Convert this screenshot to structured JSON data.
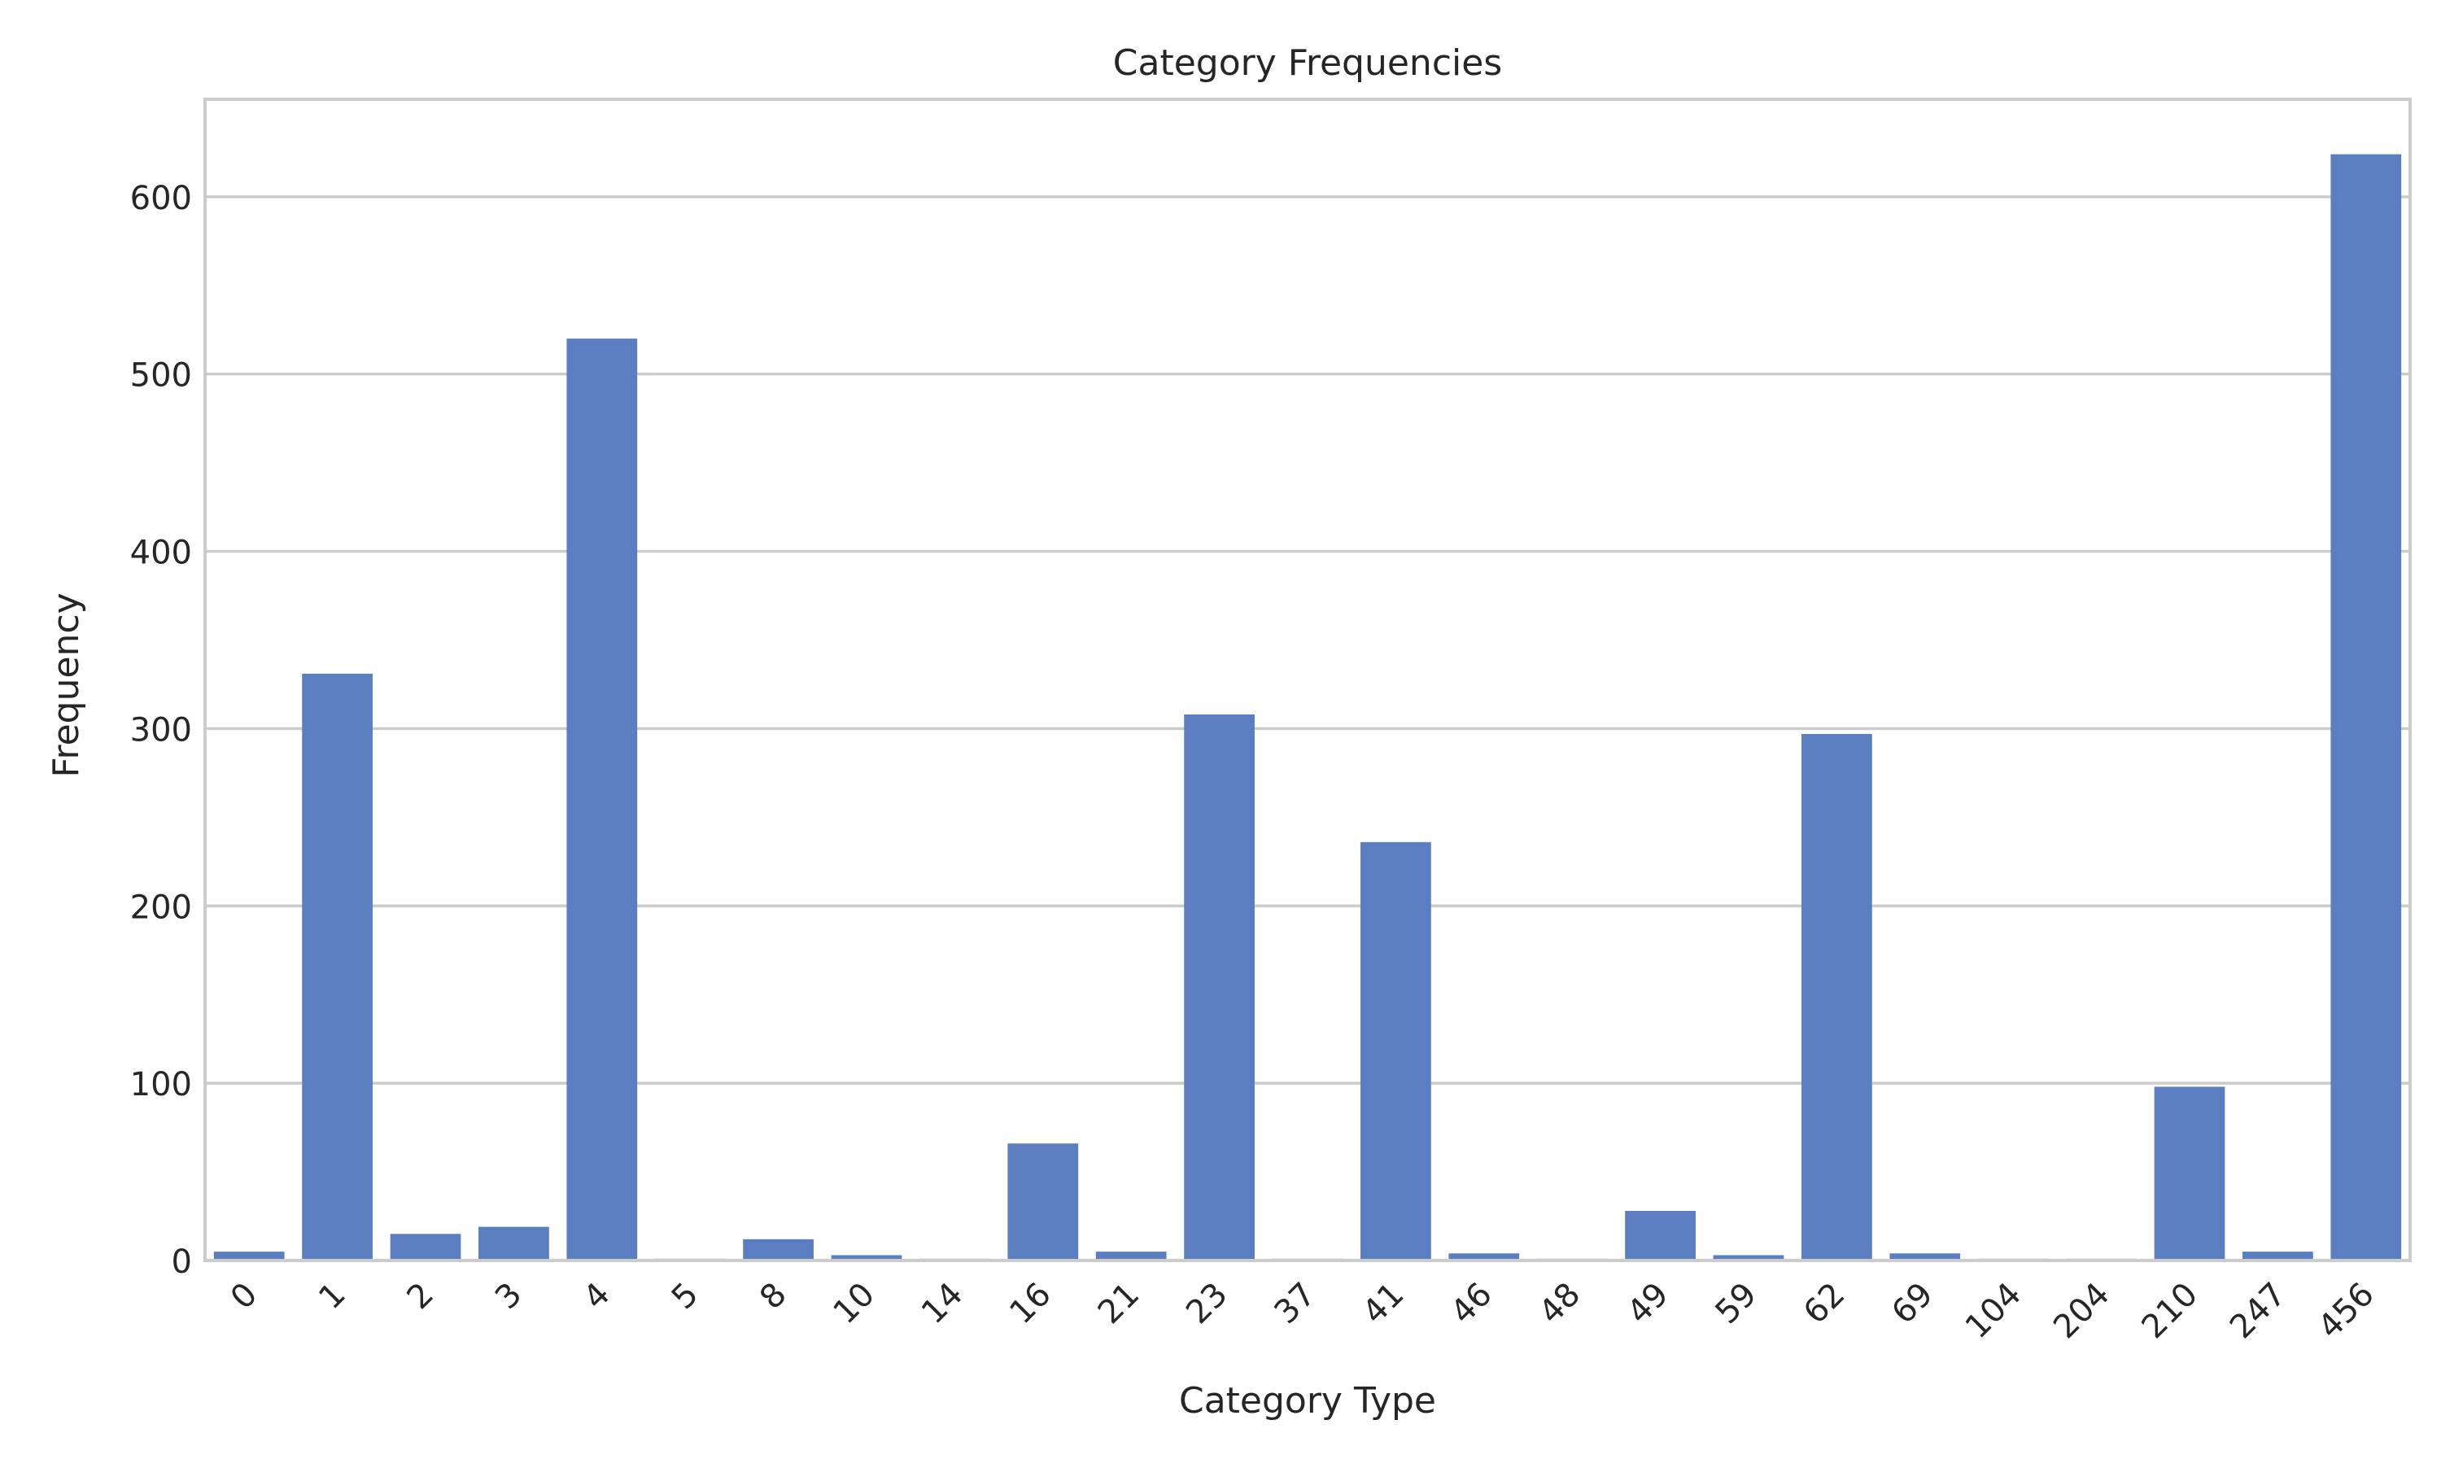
{
  "chart_data": {
    "type": "bar",
    "title": "Category Frequencies",
    "xlabel": "Category Type",
    "ylabel": "Frequency",
    "categories": [
      "0",
      "1",
      "2",
      "3",
      "4",
      "5",
      "8",
      "10",
      "14",
      "16",
      "21",
      "23",
      "37",
      "41",
      "46",
      "48",
      "49",
      "59",
      "62",
      "69",
      "104",
      "204",
      "210",
      "247",
      "456"
    ],
    "values": [
      5,
      331,
      15,
      19,
      520,
      1,
      12,
      3,
      1,
      66,
      5,
      308,
      1,
      236,
      4,
      1,
      28,
      3,
      297,
      4,
      1,
      1,
      98,
      5,
      624
    ],
    "ylim": [
      0,
      655
    ],
    "yticks": [
      0,
      100,
      200,
      300,
      400,
      500,
      600
    ],
    "grid": "y",
    "bar_color": "#5a7ec0",
    "grid_color": "#cccccc",
    "spine_color": "#cccccc"
  }
}
